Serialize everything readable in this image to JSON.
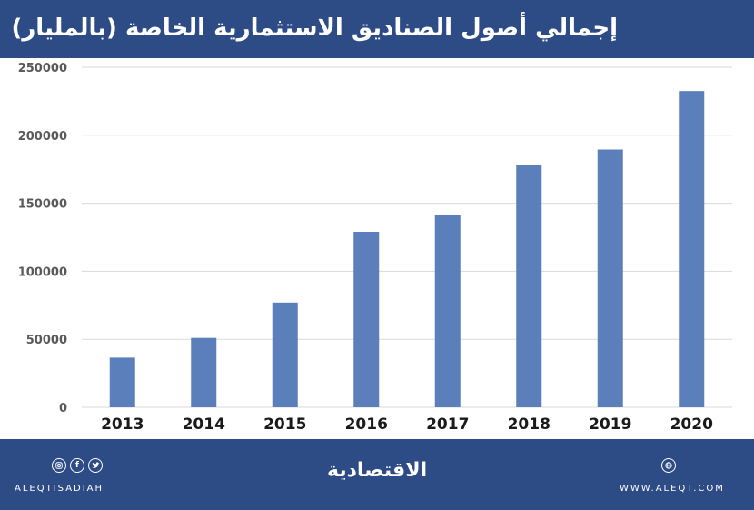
{
  "header": {
    "title": "إجمالي أصول الصناديق الاستثمارية الخاصة (بالمليار)"
  },
  "chart_data": {
    "type": "bar",
    "categories": [
      "2013",
      "2014",
      "2015",
      "2016",
      "2017",
      "2018",
      "2019",
      "2020"
    ],
    "values": [
      36500,
      51000,
      77000,
      129000,
      141500,
      178000,
      189500,
      232500
    ],
    "ylim": [
      0,
      250000
    ],
    "yticks": [
      "0",
      "50000",
      "100000",
      "150000",
      "200000",
      "250000"
    ],
    "grid": true,
    "bar_color": "#5b7fbb"
  },
  "footer": {
    "logo": "الاقتصادية",
    "social_handle": "ALEQTISADIAH",
    "website": "WWW.ALEQT.COM",
    "icons": [
      "instagram-icon",
      "facebook-icon",
      "twitter-icon",
      "globe-icon"
    ]
  }
}
